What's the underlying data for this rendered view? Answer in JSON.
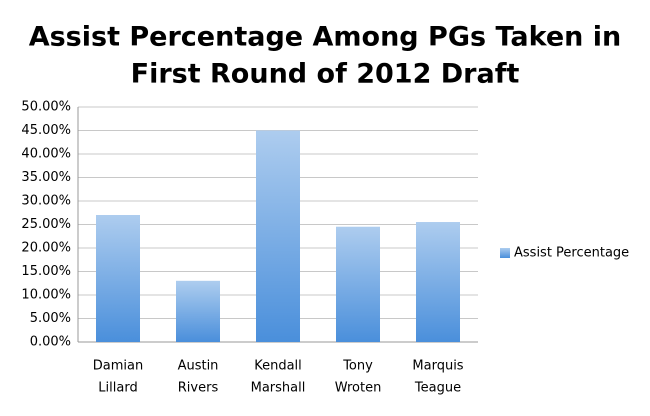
{
  "chart_data": {
    "type": "bar",
    "title": [
      "Assist Percentage Among PGs Taken in",
      "First Round of 2012 Draft"
    ],
    "categories": [
      [
        "Damian",
        "Lillard"
      ],
      [
        "Austin",
        "Rivers"
      ],
      [
        "Kendall",
        "Marshall"
      ],
      [
        "Tony",
        "Wroten"
      ],
      [
        "Marquis",
        "Teague"
      ]
    ],
    "series": [
      {
        "name": "Assist Percentage",
        "color": "#4a8fdb",
        "values": [
          27,
          13,
          45,
          24.5,
          25.5
        ]
      }
    ],
    "ylim": [
      0,
      50
    ],
    "yticks": [
      {
        "value": 0,
        "label": "0.00%"
      },
      {
        "value": 5,
        "label": "5.00%"
      },
      {
        "value": 10,
        "label": "10.00%"
      },
      {
        "value": 15,
        "label": "15.00%"
      },
      {
        "value": 20,
        "label": "20.00%"
      },
      {
        "value": 25,
        "label": "25.00%"
      },
      {
        "value": 30,
        "label": "30.00%"
      },
      {
        "value": 35,
        "label": "35.00%"
      },
      {
        "value": 40,
        "label": "40.00%"
      },
      {
        "value": 45,
        "label": "45.00%"
      },
      {
        "value": 50,
        "label": "50.00%"
      }
    ],
    "grid": true,
    "legend": "right"
  }
}
